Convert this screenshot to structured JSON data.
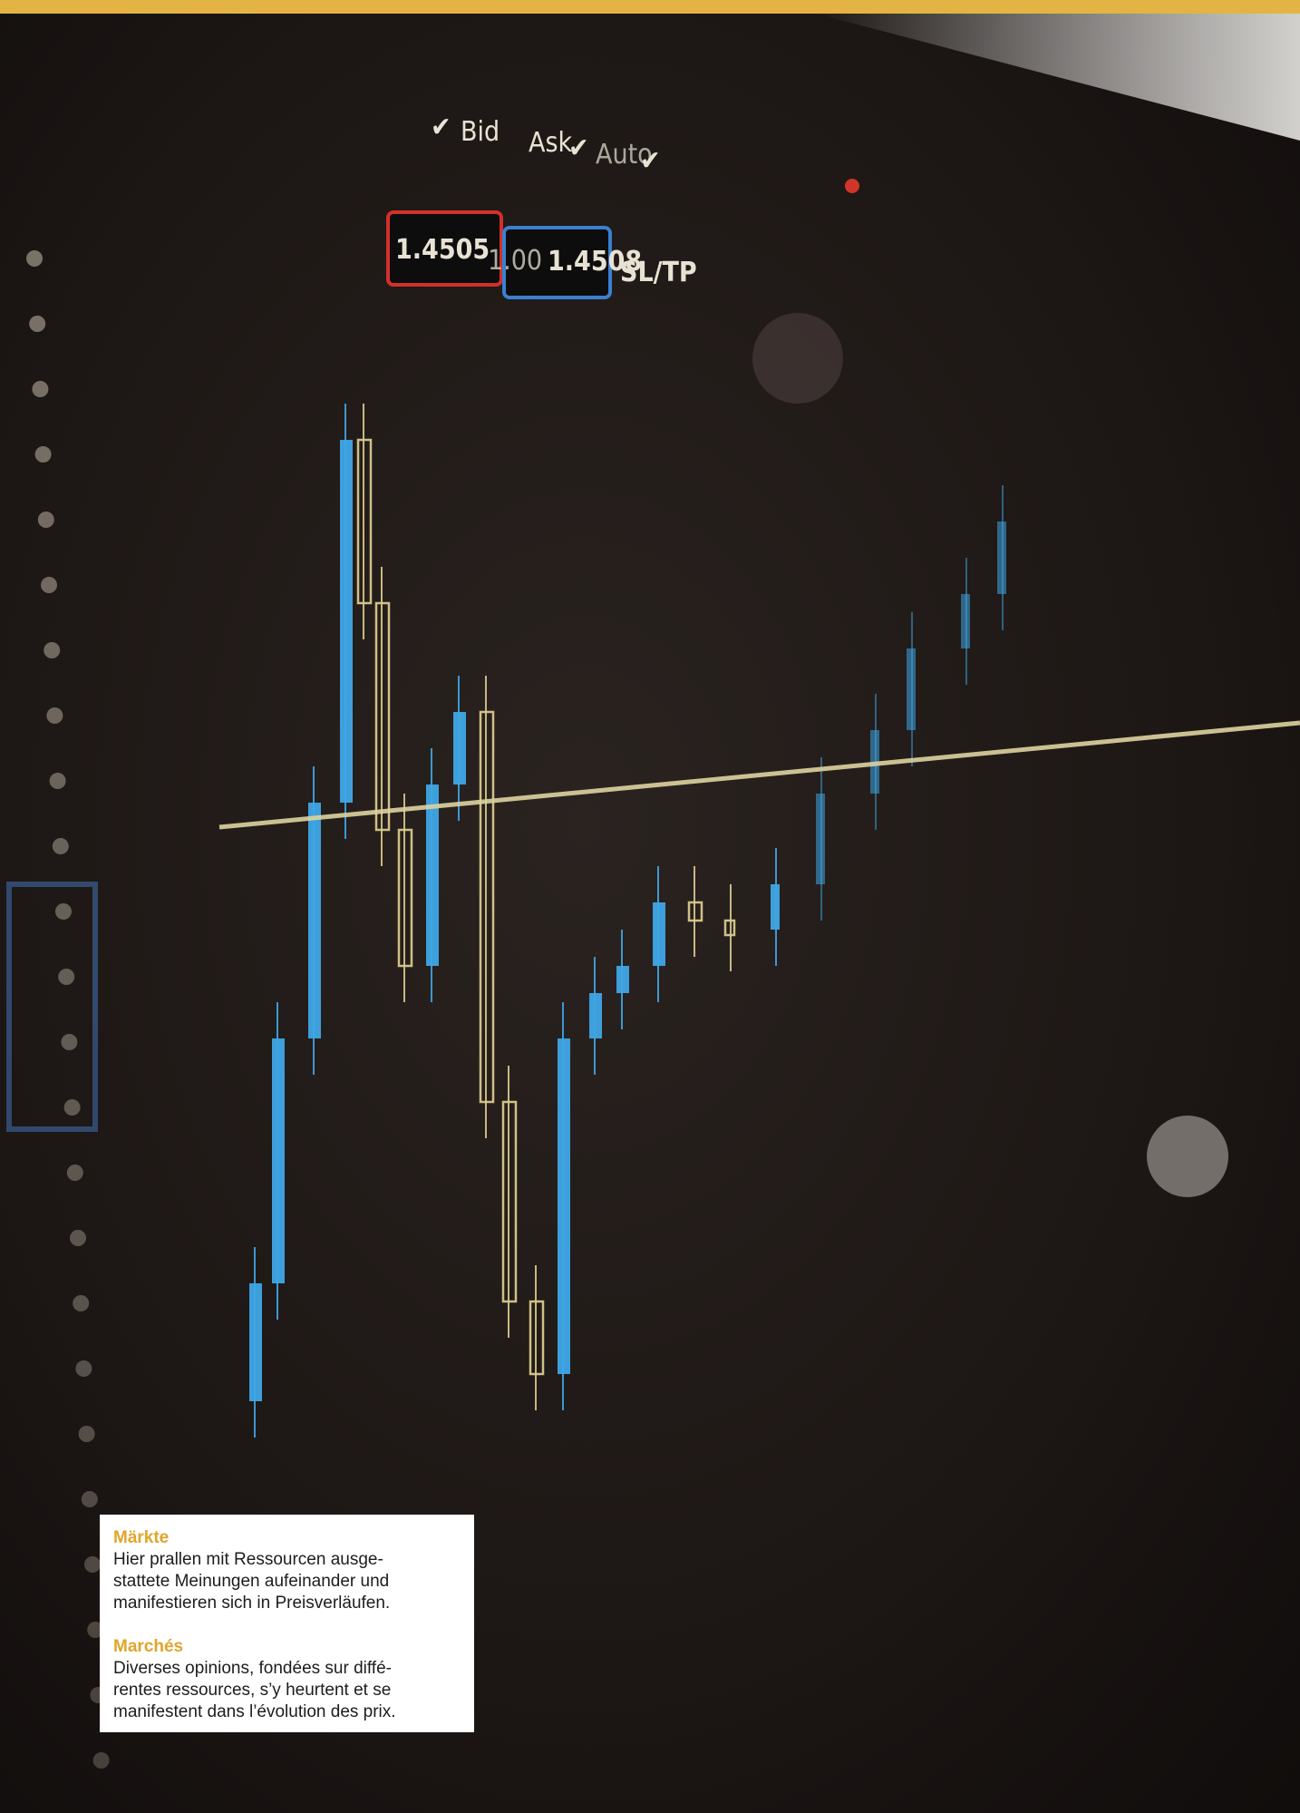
{
  "photo": {
    "labels": {
      "bid": "Bid",
      "ask": "Ask",
      "auto": "Auto",
      "bid_price": "1.4505",
      "lot": "1.00",
      "ask_price": "1.4508",
      "sltp": "SL/TP"
    }
  },
  "caption": {
    "sections": [
      {
        "heading": "Märkte",
        "lines": [
          "Hier prallen mit Ressourcen ausge-",
          "stattete Meinungen aufeinander und",
          "manifestieren sich in Preisverläufen."
        ]
      },
      {
        "heading": "Marchés",
        "lines": [
          "Diverses opinions, fondées sur diffé-",
          "rentes ressources, s’y heurtent et se",
          "manifestent dans l’évolution des prix."
        ]
      }
    ]
  }
}
